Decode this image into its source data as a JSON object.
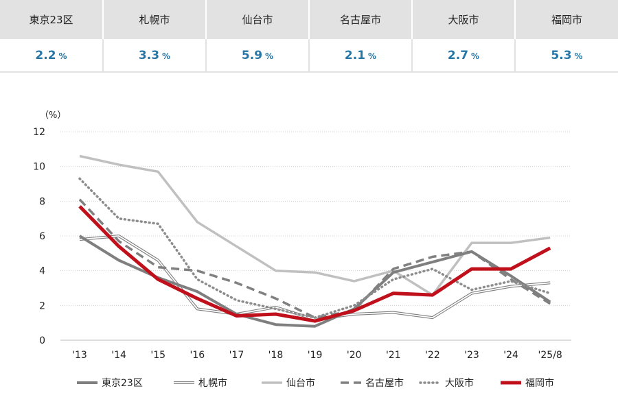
{
  "summary": {
    "cities": [
      {
        "name": "東京23区",
        "rate": "2.2",
        "unit": "%"
      },
      {
        "name": "札幌市",
        "rate": "3.3",
        "unit": "%"
      },
      {
        "name": "仙台市",
        "rate": "5.9",
        "unit": "%"
      },
      {
        "name": "名古屋市",
        "rate": "2.1",
        "unit": "%"
      },
      {
        "name": "大阪市",
        "rate": "2.7",
        "unit": "%"
      },
      {
        "name": "福岡市",
        "rate": "5.3",
        "unit": "%"
      }
    ]
  },
  "chart_data": {
    "type": "line",
    "ylabel": "（%）",
    "ylim": [
      0,
      12
    ],
    "yticks": [
      0,
      2,
      4,
      6,
      8,
      10,
      12
    ],
    "categories": [
      "'13",
      "'14",
      "'15",
      "'16",
      "'17",
      "'18",
      "'19",
      "'20",
      "'21",
      "'22",
      "'23",
      "'24",
      "'25/8"
    ],
    "grid": "horizontal dotted",
    "legend_position": "bottom",
    "series": [
      {
        "name": "東京23区",
        "style": "solid-thick",
        "color": "#7f7f7f",
        "values": [
          6.0,
          4.6,
          3.6,
          2.8,
          1.5,
          0.9,
          0.8,
          1.8,
          3.9,
          4.5,
          5.1,
          3.7,
          2.2
        ]
      },
      {
        "name": "札幌市",
        "style": "double",
        "color": "#7f7f7f",
        "values": [
          5.8,
          6.0,
          4.6,
          1.8,
          1.5,
          1.9,
          1.2,
          1.5,
          1.6,
          1.3,
          2.7,
          3.1,
          3.3
        ]
      },
      {
        "name": "仙台市",
        "style": "solid-light",
        "color": "#c0c0c0",
        "values": [
          10.6,
          10.1,
          9.7,
          6.8,
          5.4,
          4.0,
          3.9,
          3.4,
          4.0,
          2.6,
          5.6,
          5.6,
          5.9
        ]
      },
      {
        "name": "名古屋市",
        "style": "dashed",
        "color": "#808080",
        "values": [
          8.1,
          5.7,
          4.2,
          4.0,
          3.3,
          2.4,
          1.3,
          1.7,
          4.1,
          4.8,
          5.1,
          3.5,
          2.1
        ]
      },
      {
        "name": "大阪市",
        "style": "dotted",
        "color": "#8c8c8c",
        "values": [
          9.3,
          7.0,
          6.7,
          3.5,
          2.3,
          1.8,
          1.3,
          2.0,
          3.5,
          4.1,
          2.9,
          3.4,
          2.7
        ]
      },
      {
        "name": "福岡市",
        "style": "solid-red",
        "color": "#c0101c",
        "values": [
          7.7,
          5.4,
          3.5,
          2.4,
          1.4,
          1.5,
          1.1,
          1.7,
          2.7,
          2.6,
          4.1,
          4.1,
          5.3
        ]
      }
    ]
  }
}
